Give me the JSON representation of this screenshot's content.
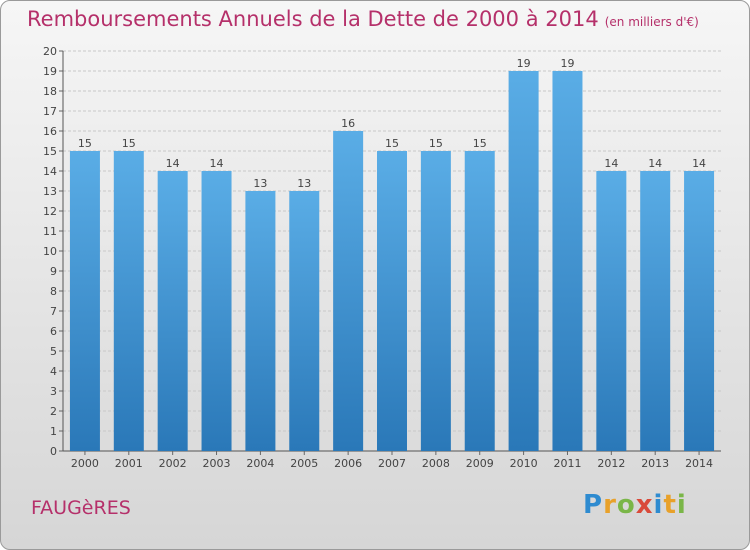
{
  "chart_data": {
    "type": "bar",
    "title": "Remboursements Annuels de la Dette de 2000 à 2014",
    "subtitle": "(en milliers d'€)",
    "categories": [
      "2000",
      "2001",
      "2002",
      "2003",
      "2004",
      "2005",
      "2006",
      "2007",
      "2008",
      "2009",
      "2010",
      "2011",
      "2012",
      "2013",
      "2014"
    ],
    "values": [
      15,
      15,
      14,
      14,
      13,
      13,
      16,
      15,
      15,
      15,
      19,
      19,
      14,
      14,
      14
    ],
    "ylim": [
      0,
      20
    ],
    "yticks": [
      0,
      1,
      2,
      3,
      4,
      5,
      6,
      7,
      8,
      9,
      10,
      11,
      12,
      13,
      14,
      15,
      16,
      17,
      18,
      19,
      20
    ],
    "grid": true,
    "bar_color_top": "#5aade6",
    "bar_color_bottom": "#2a78b8"
  },
  "footer": {
    "town": "FAUGèRES",
    "logo": {
      "letters": [
        "P",
        "r",
        "o",
        "x",
        "i",
        "t",
        "i"
      ],
      "colors": [
        "#2e8bd0",
        "#e8a12a",
        "#7ab648",
        "#d94a3a",
        "#2e8bd0",
        "#e8a12a",
        "#7ab648"
      ]
    }
  }
}
